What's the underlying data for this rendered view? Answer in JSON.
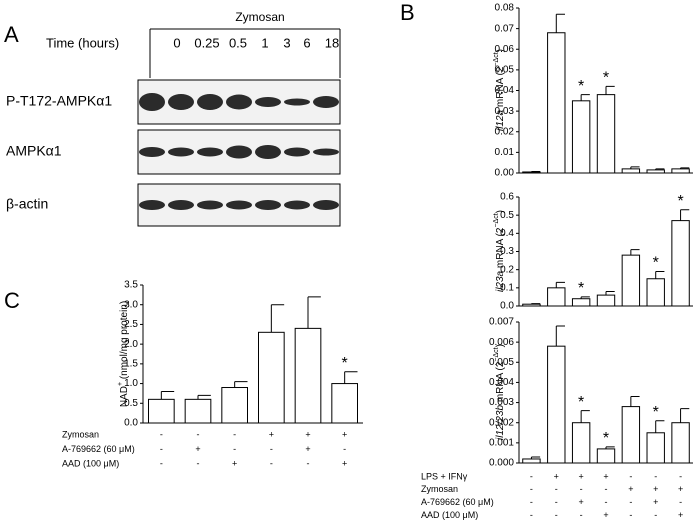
{
  "panel_labels": [
    "A",
    "B",
    "C"
  ],
  "blot": {
    "treatment": "Zymosan",
    "time_label": "Time (hours)",
    "times": [
      "0",
      "0.25",
      "0.5",
      "1",
      "3",
      "6",
      "18"
    ],
    "rows": [
      "P-T172-AMPKα1",
      "AMPKα1",
      "β-actin"
    ]
  },
  "chart_data": [
    {
      "type": "bar",
      "ylabel": [
        {
          "text": "il12a",
          "italic": true
        },
        {
          "text": " mRNA (2"
        },
        {
          "text": "−Δct",
          "sup": true
        },
        {
          "text": ")"
        }
      ],
      "categories": [
        null,
        null,
        null,
        null,
        null,
        null,
        null
      ],
      "values": [
        0.0005,
        0.068,
        0.035,
        0.038,
        0.002,
        0.0015,
        0.002
      ],
      "errors": [
        0.0002,
        0.009,
        0.003,
        0.004,
        0.001,
        0.0005,
        0.0005
      ],
      "ylim": [
        0,
        0.08
      ],
      "yticks": [
        {
          "value": 0,
          "label": "0.00"
        },
        {
          "value": 0.01,
          "label": "0.01"
        },
        {
          "value": 0.02,
          "label": "0.02"
        },
        {
          "value": 0.03,
          "label": "0.03"
        },
        {
          "value": 0.04,
          "label": "0.04"
        },
        {
          "value": 0.05,
          "label": "0.05"
        },
        {
          "value": 0.06,
          "label": "0.06"
        },
        {
          "value": 0.07,
          "label": "0.07"
        },
        {
          "value": 0.08,
          "label": "0.08"
        }
      ],
      "color": "#ffffff",
      "annotations": [
        {
          "category": 2,
          "text": "*"
        },
        {
          "category": 3,
          "text": "*"
        }
      ]
    },
    {
      "type": "bar",
      "ylabel": [
        {
          "text": "il23a",
          "italic": true
        },
        {
          "text": " mRNA (2"
        },
        {
          "text": "−Δct",
          "sup": true
        },
        {
          "text": ")"
        }
      ],
      "categories": [
        null,
        null,
        null,
        null,
        null,
        null,
        null
      ],
      "values": [
        0.01,
        0.1,
        0.04,
        0.06,
        0.28,
        0.15,
        0.47
      ],
      "errors": [
        0.003,
        0.03,
        0.01,
        0.02,
        0.03,
        0.04,
        0.06
      ],
      "ylim": [
        0,
        0.6
      ],
      "yticks": [
        {
          "value": 0,
          "label": "0.0"
        },
        0.1,
        0.2,
        0.3,
        0.4,
        0.5,
        0.6
      ],
      "color": "#ffffff",
      "annotations": [
        {
          "category": 2,
          "text": "*"
        },
        {
          "category": 5,
          "text": "*"
        },
        {
          "category": 6,
          "text": "*"
        }
      ]
    },
    {
      "type": "bar",
      "ylabel": [
        {
          "text": "il12/23b",
          "italic": true
        },
        {
          "text": " mRNA (2"
        },
        {
          "text": "−Δct",
          "sup": true
        },
        {
          "text": ")"
        }
      ],
      "categories": [
        null,
        null,
        null,
        null,
        null,
        null,
        null
      ],
      "values": [
        0.0002,
        0.0058,
        0.002,
        0.0007,
        0.0028,
        0.0015,
        0.002
      ],
      "errors": [
        0.0001,
        0.001,
        0.0006,
        0.0001,
        0.0005,
        0.0006,
        0.0007
      ],
      "ylim": [
        0,
        0.007
      ],
      "yticks": [
        {
          "value": 0,
          "label": "0.000"
        },
        {
          "value": 0.001,
          "label": "0.001"
        },
        {
          "value": 0.002,
          "label": "0.002"
        },
        {
          "value": 0.003,
          "label": "0.003"
        },
        {
          "value": 0.004,
          "label": "0.004"
        },
        {
          "value": 0.005,
          "label": "0.005"
        },
        {
          "value": 0.006,
          "label": "0.006"
        },
        {
          "value": 0.007,
          "label": "0.007"
        }
      ],
      "color": "#ffffff",
      "annotations": [
        {
          "category": 2,
          "text": "*"
        },
        {
          "category": 3,
          "text": "*"
        },
        {
          "category": 5,
          "text": "*"
        }
      ],
      "treatments": [
        {
          "name": "LPS + IFNγ",
          "signs": [
            "-",
            "+",
            "+",
            "+",
            "-",
            "-",
            "-"
          ]
        },
        {
          "name": "Zymosan",
          "signs": [
            "-",
            "-",
            "-",
            "-",
            "+",
            "+",
            "+"
          ]
        },
        {
          "name": "A-769662 (60 μM)",
          "signs": [
            "-",
            "-",
            "+",
            "-",
            "-",
            "+",
            "-"
          ]
        },
        {
          "name": "AAD (100 μM)",
          "signs": [
            "-",
            "-",
            "-",
            "+",
            "-",
            "-",
            "+"
          ]
        }
      ]
    },
    {
      "type": "bar",
      "ylabel": [
        {
          "text": "NAD"
        },
        {
          "text": "+",
          "sup": true
        },
        {
          "text": " (nmol/mg protein)"
        }
      ],
      "categories": [
        null,
        null,
        null,
        null,
        null,
        null
      ],
      "values": [
        0.6,
        0.6,
        0.9,
        2.3,
        2.4,
        1.0
      ],
      "errors": [
        0.2,
        0.1,
        0.15,
        0.7,
        0.8,
        0.3
      ],
      "ylim": [
        0,
        3.5
      ],
      "yticks": [
        {
          "value": 0,
          "label": "0.0"
        },
        0.5,
        {
          "value": 1,
          "label": "1.0"
        },
        1.5,
        {
          "value": 2,
          "label": "2.0"
        },
        2.5,
        {
          "value": 3,
          "label": "3.0"
        },
        3.5
      ],
      "color": "#ffffff",
      "annotations": [
        {
          "category": 5,
          "text": "*"
        }
      ],
      "treatments": [
        {
          "name": "Zymosan",
          "signs": [
            "-",
            "-",
            "-",
            "+",
            "+",
            "+"
          ]
        },
        {
          "name": "A-769662 (60 μM)",
          "signs": [
            "-",
            "+",
            "-",
            "-",
            "+",
            "-"
          ]
        },
        {
          "name": "AAD (100 μM)",
          "signs": [
            "-",
            "-",
            "+",
            "-",
            "-",
            "+"
          ]
        }
      ]
    }
  ]
}
